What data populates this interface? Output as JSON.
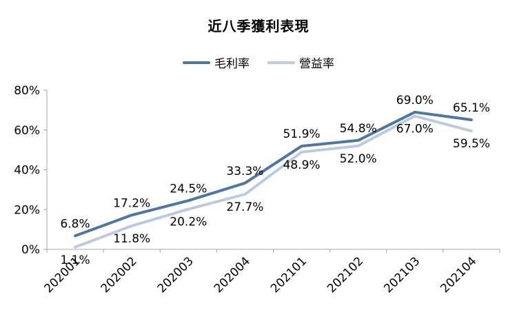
{
  "chart_data": {
    "type": "line",
    "title": "近八季獲利表現",
    "categories": [
      "202001",
      "202002",
      "202003",
      "202004",
      "202101",
      "202102",
      "202103",
      "202104"
    ],
    "series": [
      {
        "name": "毛利率",
        "values": [
          6.8,
          17.2,
          24.5,
          33.3,
          51.9,
          54.8,
          69.0,
          65.1
        ],
        "labels": [
          "6.8%",
          "17.2%",
          "24.5%",
          "33.3%",
          "51.9%",
          "54.8%",
          "69.0%",
          "65.1%"
        ],
        "color": "#4a76a8"
      },
      {
        "name": "營益率",
        "values": [
          1.1,
          11.8,
          20.2,
          27.7,
          48.9,
          52.0,
          67.0,
          59.5
        ],
        "labels": [
          "1.1%",
          "11.8%",
          "20.2%",
          "27.7%",
          "48.9%",
          "52.0%",
          "67.0%",
          "59.5%"
        ],
        "color": "#b9cbe2"
      }
    ],
    "ylim": [
      0,
      80
    ],
    "yticks": [
      "0%",
      "20%",
      "40%",
      "60%",
      "80%"
    ],
    "legend_position": "top",
    "grid": false
  }
}
